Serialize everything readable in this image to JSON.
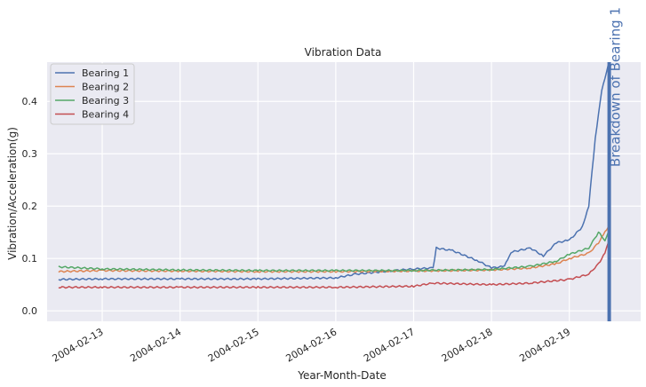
{
  "chart_data": {
    "type": "line",
    "title": "Vibration Data",
    "xlabel": "Year-Month-Date",
    "ylabel": "Vibration/Acceleration(g)",
    "ylim": [
      -0.02,
      0.475
    ],
    "yticks": [
      0.0,
      0.1,
      0.2,
      0.3,
      0.4
    ],
    "ytick_labels": [
      "0.0",
      "0.1",
      "0.2",
      "0.3",
      "0.4"
    ],
    "xlim": [
      "2004-02-12 07:00",
      "2004-02-19 22:00"
    ],
    "xticks": [
      "2004-02-13",
      "2004-02-14",
      "2004-02-15",
      "2004-02-16",
      "2004-02-17",
      "2004-02-18",
      "2004-02-19"
    ],
    "grid": true,
    "legend_position": "top-left",
    "background_color": "#eaeaf2",
    "series": [
      {
        "name": "Bearing 1",
        "color": "#4c72b0",
        "points": [
          [
            "2004-02-12 10:32",
            0.06
          ],
          [
            "2004-02-13 00:00",
            0.061
          ],
          [
            "2004-02-14 00:00",
            0.061
          ],
          [
            "2004-02-15 00:00",
            0.061
          ],
          [
            "2004-02-16 00:00",
            0.063
          ],
          [
            "2004-02-16 06:00",
            0.07
          ],
          [
            "2004-02-16 18:00",
            0.077
          ],
          [
            "2004-02-17 00:00",
            0.08
          ],
          [
            "2004-02-17 06:00",
            0.082
          ],
          [
            "2004-02-17 07:00",
            0.12
          ],
          [
            "2004-02-17 12:00",
            0.115
          ],
          [
            "2004-02-17 20:00",
            0.095
          ],
          [
            "2004-02-18 00:00",
            0.082
          ],
          [
            "2004-02-18 04:00",
            0.085
          ],
          [
            "2004-02-18 06:00",
            0.112
          ],
          [
            "2004-02-18 12:00",
            0.12
          ],
          [
            "2004-02-18 16:00",
            0.105
          ],
          [
            "2004-02-18 20:00",
            0.13
          ],
          [
            "2004-02-19 00:00",
            0.135
          ],
          [
            "2004-02-19 04:00",
            0.16
          ],
          [
            "2004-02-19 06:00",
            0.2
          ],
          [
            "2004-02-19 08:00",
            0.33
          ],
          [
            "2004-02-19 10:00",
            0.42
          ],
          [
            "2004-02-19 12:00",
            0.47
          ]
        ]
      },
      {
        "name": "Bearing 2",
        "color": "#dd8452",
        "points": [
          [
            "2004-02-12 10:32",
            0.075
          ],
          [
            "2004-02-13 00:00",
            0.077
          ],
          [
            "2004-02-14 00:00",
            0.076
          ],
          [
            "2004-02-15 00:00",
            0.075
          ],
          [
            "2004-02-16 00:00",
            0.075
          ],
          [
            "2004-02-17 00:00",
            0.076
          ],
          [
            "2004-02-18 00:00",
            0.078
          ],
          [
            "2004-02-18 12:00",
            0.082
          ],
          [
            "2004-02-18 20:00",
            0.09
          ],
          [
            "2004-02-19 00:00",
            0.1
          ],
          [
            "2004-02-19 06:00",
            0.11
          ],
          [
            "2004-02-19 09:00",
            0.13
          ],
          [
            "2004-02-19 11:00",
            0.15
          ],
          [
            "2004-02-19 12:00",
            0.16
          ]
        ]
      },
      {
        "name": "Bearing 3",
        "color": "#55a868",
        "points": [
          [
            "2004-02-12 10:32",
            0.084
          ],
          [
            "2004-02-13 00:00",
            0.08
          ],
          [
            "2004-02-14 00:00",
            0.078
          ],
          [
            "2004-02-15 00:00",
            0.077
          ],
          [
            "2004-02-16 00:00",
            0.077
          ],
          [
            "2004-02-17 00:00",
            0.077
          ],
          [
            "2004-02-18 00:00",
            0.079
          ],
          [
            "2004-02-18 12:00",
            0.085
          ],
          [
            "2004-02-18 20:00",
            0.095
          ],
          [
            "2004-02-19 00:00",
            0.108
          ],
          [
            "2004-02-19 06:00",
            0.12
          ],
          [
            "2004-02-19 09:00",
            0.15
          ],
          [
            "2004-02-19 11:00",
            0.135
          ],
          [
            "2004-02-19 12:00",
            0.15
          ]
        ]
      },
      {
        "name": "Bearing 4",
        "color": "#c44e52",
        "points": [
          [
            "2004-02-12 10:32",
            0.045
          ],
          [
            "2004-02-13 00:00",
            0.045
          ],
          [
            "2004-02-14 00:00",
            0.045
          ],
          [
            "2004-02-15 00:00",
            0.045
          ],
          [
            "2004-02-16 00:00",
            0.045
          ],
          [
            "2004-02-17 00:00",
            0.047
          ],
          [
            "2004-02-17 06:00",
            0.053
          ],
          [
            "2004-02-18 00:00",
            0.05
          ],
          [
            "2004-02-18 12:00",
            0.053
          ],
          [
            "2004-02-19 00:00",
            0.06
          ],
          [
            "2004-02-19 06:00",
            0.07
          ],
          [
            "2004-02-19 09:00",
            0.09
          ],
          [
            "2004-02-19 11:00",
            0.11
          ],
          [
            "2004-02-19 12:00",
            0.13
          ]
        ]
      }
    ],
    "annotations": [
      {
        "text": "Breakdown of Bearing 1",
        "x": "2004-02-19 12:18",
        "color": "#4c72b0",
        "line_color": "#4c72b0"
      }
    ]
  }
}
